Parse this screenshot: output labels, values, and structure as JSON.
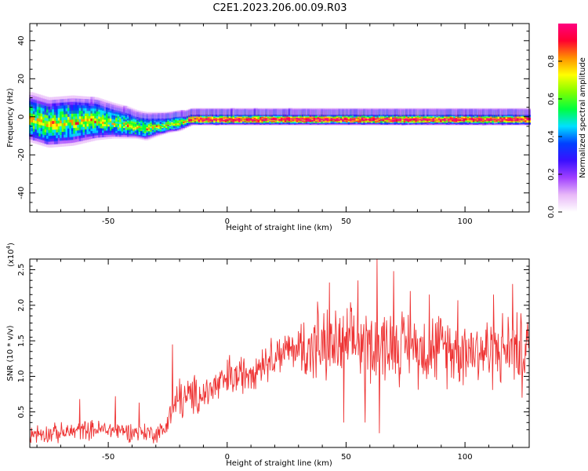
{
  "title": "C2E1.2023.206.00.09.R03",
  "chart_data": [
    {
      "type": "heatmap",
      "title": "C2E1.2023.206.00.09.R03",
      "xlabel": "Height of straight line (km)",
      "ylabel": "Frequency (Hz)",
      "xlim": [
        -83,
        127
      ],
      "ylim": [
        -50,
        49
      ],
      "xticks": [
        -50,
        0,
        50,
        100
      ],
      "yticks": [
        -40,
        -20,
        0,
        20,
        40
      ],
      "xtick_labels": [
        "-50",
        "0",
        "50",
        "100"
      ],
      "ytick_labels": [
        "-40",
        "-20",
        "0",
        "20",
        "40"
      ],
      "colorbar": {
        "label": "Normalized spectral amplitude",
        "range": [
          0,
          1
        ],
        "ticks": [
          0.0,
          0.2,
          0.4,
          0.6,
          0.8
        ],
        "tick_labels": [
          "0.0",
          "0.2",
          "0.4",
          "0.6",
          "0.8"
        ],
        "colormap": [
          "#ffffff",
          "#e8b8f8",
          "#a040ff",
          "#3a10ff",
          "#0040ff",
          "#00e0ff",
          "#00ff40",
          "#80ff00",
          "#ffff00",
          "#ff9000",
          "#ff0030",
          "#ff0080"
        ]
      },
      "ridge": {
        "x": [
          -83,
          -75,
          -65,
          -55,
          -48,
          -42,
          -38,
          -34,
          -30,
          -25,
          -20,
          -17,
          -15,
          -12,
          0,
          20,
          40,
          60,
          80,
          100,
          127
        ],
        "center_hz": [
          0,
          -3,
          -2,
          -1,
          -2,
          -3,
          -4,
          -5,
          -4,
          -3,
          -2,
          -1,
          0,
          0,
          0,
          0,
          0,
          0,
          0,
          0,
          0
        ],
        "half_width_hz": [
          6,
          6,
          6,
          5,
          4,
          3.5,
          3,
          3,
          2.5,
          2,
          2,
          1.5,
          1.5,
          1.5,
          1.5,
          1.5,
          1.5,
          1.5,
          1.5,
          1.5,
          1.5
        ]
      }
    },
    {
      "type": "line",
      "xlabel": "Height of straight line (km)",
      "ylabel": "SNR (10 * v/v)",
      "multiplier_label": "(x10",
      "multiplier_exp": "4",
      "multiplier_close": ")",
      "xlim": [
        -83,
        127
      ],
      "ylim": [
        0,
        2.65
      ],
      "xticks": [
        -50,
        0,
        50,
        100
      ],
      "yticks": [
        0.5,
        1.0,
        1.5,
        2.0,
        2.5
      ],
      "xtick_labels": [
        "-50",
        "0",
        "50",
        "100"
      ],
      "ytick_labels": [
        "0.5",
        "1.0",
        "1.5",
        "2.0",
        "2.5"
      ],
      "line_color": "#ee3333",
      "envelope": {
        "x": [
          -83,
          -70,
          -60,
          -50,
          -40,
          -30,
          -26,
          -25,
          -20,
          -15,
          -10,
          -5,
          0,
          5,
          10,
          15,
          20,
          25,
          30,
          35,
          40,
          50,
          60,
          70,
          80,
          90,
          100,
          110,
          120,
          127
        ],
        "y": [
          0.2,
          0.2,
          0.25,
          0.25,
          0.22,
          0.2,
          0.25,
          0.45,
          0.65,
          0.72,
          0.75,
          0.85,
          0.95,
          1.0,
          1.1,
          1.2,
          1.3,
          1.35,
          1.4,
          1.4,
          1.4,
          1.45,
          1.45,
          1.45,
          1.4,
          1.4,
          1.4,
          1.35,
          1.4,
          1.4
        ]
      },
      "spikes": [
        {
          "x": -62,
          "y": 0.68
        },
        {
          "x": -47,
          "y": 0.72
        },
        {
          "x": -37,
          "y": 0.63
        },
        {
          "x": -23,
          "y": 1.45
        },
        {
          "x": -20,
          "y": 0.97
        },
        {
          "x": 1,
          "y": 1.3
        },
        {
          "x": 22,
          "y": 1.52
        },
        {
          "x": 38,
          "y": 2.05
        },
        {
          "x": 43,
          "y": 2.32
        },
        {
          "x": 49,
          "y": 0.35
        },
        {
          "x": 55,
          "y": 2.35
        },
        {
          "x": 58,
          "y": 0.35
        },
        {
          "x": 63,
          "y": 2.65
        },
        {
          "x": 64,
          "y": 0.2
        },
        {
          "x": 70,
          "y": 2.48
        },
        {
          "x": 77,
          "y": 2.2
        },
        {
          "x": 85,
          "y": 2.15
        },
        {
          "x": 97,
          "y": 2.07
        },
        {
          "x": 112,
          "y": 2.15
        },
        {
          "x": 120,
          "y": 2.3
        },
        {
          "x": 124,
          "y": 0.7
        }
      ]
    }
  ]
}
